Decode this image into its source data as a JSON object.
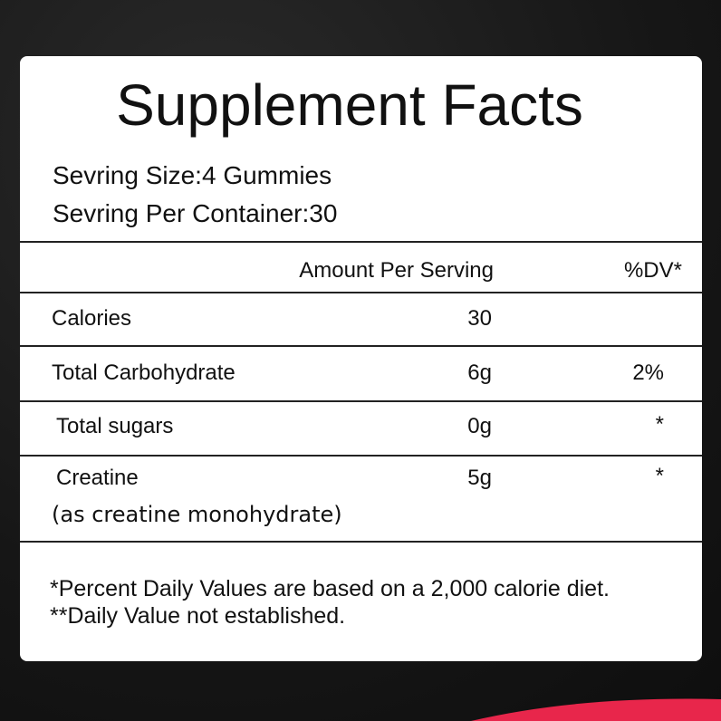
{
  "title": "Supplement Facts",
  "serving": [
    "Sevring Size:4 Gummies",
    "Sevring Per Container:30"
  ],
  "table": {
    "header": {
      "amount": "Amount Per Serving",
      "dv": "%DV*"
    },
    "rows": [
      {
        "name": "Calories",
        "amount": "30"
      },
      {
        "name": "Total Carbohydrate",
        "amount": "6g",
        "dv": "2%"
      },
      {
        "name": "Total sugars",
        "amount": "0g",
        "dv": "*"
      },
      {
        "name": "Creatine",
        "note": "(as creatine monohydrate)",
        "amount": "5g",
        "dv": "*"
      }
    ]
  },
  "footnotes": [
    "*Percent Daily Values are based on a 2,000 calorie diet.",
    "**Daily Value not established."
  ]
}
